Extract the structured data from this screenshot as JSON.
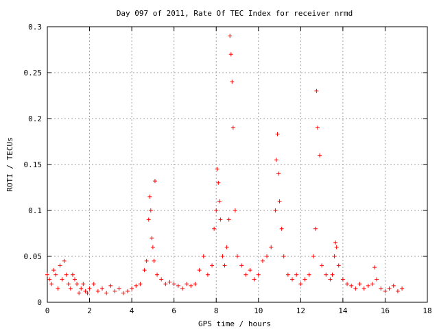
{
  "chart_data": {
    "type": "scatter",
    "title": "Day 097 of 2011, Rate Of TEC Index for receiver nrmd",
    "xlabel": "GPS time / hours",
    "ylabel": "ROTI / TECUs",
    "xlim": [
      0,
      18
    ],
    "ylim": [
      0,
      0.3
    ],
    "x_ticks": [
      "0",
      "2",
      "4",
      "6",
      "8",
      "10",
      "12",
      "14",
      "16",
      "18"
    ],
    "y_ticks": [
      "0",
      "0.05",
      "0.1",
      "0.15",
      "0.2",
      "0.25",
      "0.3"
    ],
    "grid": true,
    "marker": "+",
    "color": "#ff0000",
    "series": [
      {
        "x": [
          0.0,
          0.1,
          0.2,
          0.3,
          0.4,
          0.5,
          0.6,
          0.7,
          0.8,
          0.9,
          1.0,
          1.1,
          1.2,
          1.3,
          1.4,
          1.5,
          1.6,
          1.7,
          1.8,
          1.9,
          2.0,
          2.2,
          2.4,
          2.6,
          2.8,
          3.0,
          3.2,
          3.4,
          3.6,
          3.8,
          4.0,
          4.2,
          4.4,
          4.6,
          4.7,
          4.8,
          4.85,
          4.9,
          4.95,
          5.0,
          5.05,
          5.1,
          5.2,
          5.4,
          5.6,
          5.8,
          6.0,
          6.2,
          6.4,
          6.6,
          6.8,
          7.0,
          7.2,
          7.4,
          7.6,
          7.8,
          7.9,
          8.0,
          8.05,
          8.1,
          8.15,
          8.2,
          8.3,
          8.4,
          8.5,
          8.6,
          8.65,
          8.7,
          8.75,
          8.8,
          8.9,
          9.0,
          9.2,
          9.4,
          9.6,
          9.8,
          10.0,
          10.2,
          10.4,
          10.6,
          10.8,
          10.85,
          10.9,
          10.95,
          11.0,
          11.1,
          11.2,
          11.4,
          11.6,
          11.8,
          12.0,
          12.2,
          12.4,
          12.6,
          12.7,
          12.75,
          12.8,
          12.9,
          13.0,
          13.2,
          13.4,
          13.5,
          13.6,
          13.65,
          13.7,
          13.8,
          14.0,
          14.2,
          14.4,
          14.6,
          14.8,
          15.0,
          15.2,
          15.4,
          15.5,
          15.6,
          15.8,
          16.0,
          16.2,
          16.4,
          16.6,
          16.8
        ],
        "y": [
          0.03,
          0.025,
          0.02,
          0.035,
          0.03,
          0.015,
          0.04,
          0.025,
          0.045,
          0.03,
          0.02,
          0.015,
          0.03,
          0.025,
          0.02,
          0.01,
          0.015,
          0.02,
          0.012,
          0.01,
          0.015,
          0.02,
          0.012,
          0.015,
          0.01,
          0.018,
          0.012,
          0.015,
          0.01,
          0.012,
          0.015,
          0.018,
          0.02,
          0.035,
          0.045,
          0.09,
          0.115,
          0.1,
          0.07,
          0.06,
          0.045,
          0.132,
          0.03,
          0.025,
          0.02,
          0.022,
          0.02,
          0.018,
          0.015,
          0.02,
          0.018,
          0.02,
          0.035,
          0.05,
          0.03,
          0.04,
          0.08,
          0.1,
          0.145,
          0.13,
          0.11,
          0.09,
          0.05,
          0.04,
          0.06,
          0.09,
          0.29,
          0.27,
          0.24,
          0.19,
          0.1,
          0.05,
          0.04,
          0.03,
          0.035,
          0.025,
          0.03,
          0.045,
          0.05,
          0.06,
          0.1,
          0.155,
          0.183,
          0.14,
          0.11,
          0.08,
          0.05,
          0.03,
          0.025,
          0.03,
          0.02,
          0.025,
          0.03,
          0.05,
          0.08,
          0.23,
          0.19,
          0.16,
          0.04,
          0.03,
          0.025,
          0.03,
          0.05,
          0.065,
          0.06,
          0.04,
          0.025,
          0.02,
          0.018,
          0.015,
          0.02,
          0.015,
          0.018,
          0.02,
          0.038,
          0.025,
          0.015,
          0.012,
          0.015,
          0.018,
          0.012,
          0.015
        ]
      }
    ]
  }
}
